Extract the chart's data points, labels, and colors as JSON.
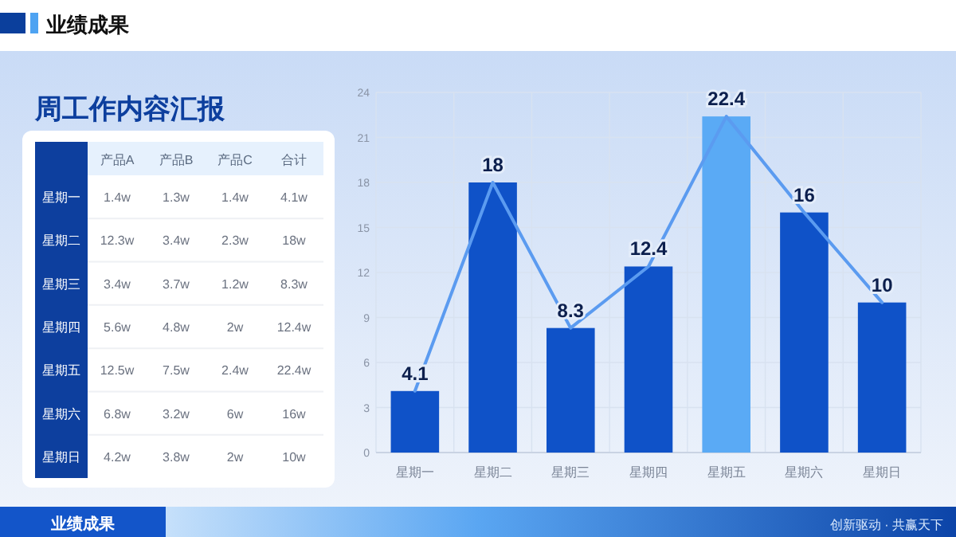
{
  "chart_data": [
    {
      "type": "other",
      "title": "周工作内容汇报",
      "categories": [
        "产品A",
        "产品B",
        "产品C",
        "合计"
      ],
      "y_categories": [
        "星期一",
        "星期二",
        "星期三",
        "星期四",
        "星期五",
        "星期六",
        "星期日"
      ],
      "cell_labels": [
        [
          "1.4w",
          "1.3w",
          "1.4w",
          "4.1w"
        ],
        [
          "12.3w",
          "3.4w",
          "2.3w",
          "18w"
        ],
        [
          "3.4w",
          "3.7w",
          "1.2w",
          "8.3w"
        ],
        [
          "5.6w",
          "4.8w",
          "2w",
          "12.4w"
        ],
        [
          "12.5w",
          "7.5w",
          "2.4w",
          "22.4w"
        ],
        [
          "6.8w",
          "3.2w",
          "6w",
          "16w"
        ],
        [
          "4.2w",
          "3.8w",
          "2w",
          "10w"
        ]
      ],
      "annotations": [
        "业绩成果",
        "业绩成果",
        "创新驱动 · 共赢天下"
      ]
    },
    {
      "type": "bar",
      "categories": [
        "星期一",
        "星期二",
        "星期三",
        "星期四",
        "星期五",
        "星期六",
        "星期日"
      ],
      "series": [
        {
          "type": "bar",
          "colors": [
            "#0f52c8",
            "#0f52c8",
            "#0f52c8",
            "#0f52c8",
            "#5aaaf5",
            "#0f52c8",
            "#0f52c8"
          ],
          "values": [
            4.1,
            18,
            8.3,
            12.4,
            22.4,
            16,
            10
          ],
          "value_labels": [
            "4.1",
            "18",
            "8.3",
            "12.4",
            "22.4",
            "16",
            "10"
          ]
        },
        {
          "type": "line",
          "color": "#5b9bf0",
          "values": [
            4.1,
            18,
            8.3,
            12.4,
            22.4,
            16,
            10
          ]
        }
      ],
      "ylim": [
        0,
        24
      ],
      "yticks": [
        0,
        3,
        6,
        9,
        12,
        15,
        18,
        21,
        24
      ],
      "grid": true,
      "marker": "none",
      "line_style": "solid"
    }
  ]
}
